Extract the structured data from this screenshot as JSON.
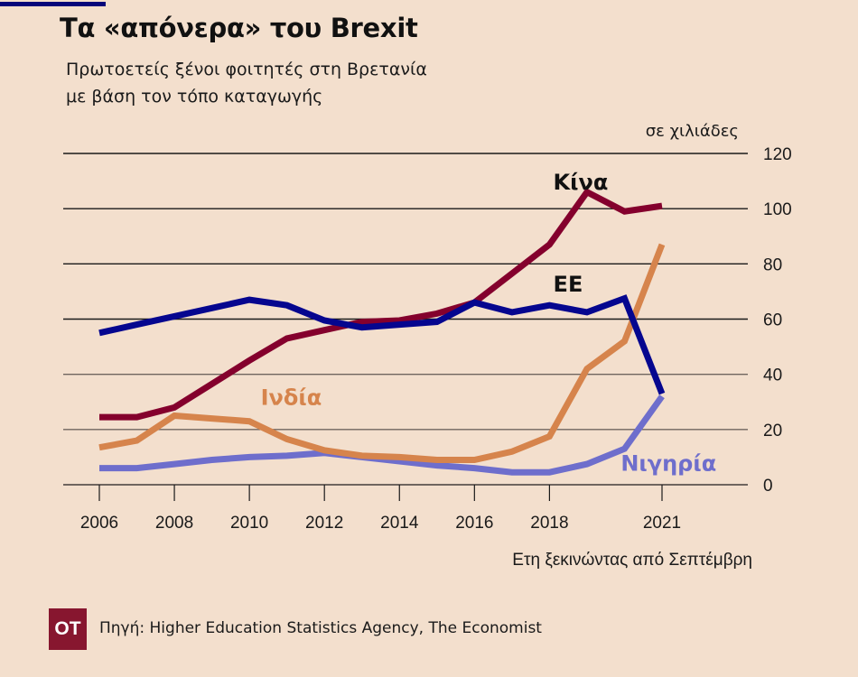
{
  "header": {
    "title": "Τα «απόνερα» του Brexit",
    "subtitle_line1": "Πρωτοετείς ξένοι φοιτητές στη Βρετανία",
    "subtitle_line2": "με βάση τον τόπο καταγωγής"
  },
  "footer": {
    "logo_text": "OT",
    "source": "Πηγή: Higher Education Statistics Agency, The Economist"
  },
  "colors": {
    "background": "#f3dfcd",
    "accent_bar": "#05067a",
    "logo": "#87162f"
  },
  "chart_data": {
    "type": "line",
    "title": "Τα «απόνερα» του Brexit",
    "subtitle": "Πρωτοετείς ξένοι φοιτητές στη Βρετανία με βάση τον τόπο καταγωγής",
    "unit_label": "σε χιλιάδες",
    "xlabel": "Ετη ξεκινώντας από Σεπτέμβρη",
    "ylabel": "",
    "x": [
      2006,
      2007,
      2008,
      2009,
      2010,
      2011,
      2012,
      2013,
      2014,
      2015,
      2016,
      2017,
      2018,
      2019,
      2020,
      2021
    ],
    "xlim": [
      2004.6,
      2023.3
    ],
    "ylim": [
      0,
      120
    ],
    "x_ticks": [
      2006,
      2008,
      2010,
      2012,
      2014,
      2016,
      2018,
      2021
    ],
    "x_tick_labels": [
      "2006",
      "2008",
      "2010",
      "2012",
      "2014",
      "2016",
      "2018",
      "2021"
    ],
    "y_ticks": [
      0,
      20,
      40,
      60,
      80,
      100,
      120
    ],
    "y_tick_labels": [
      "0",
      "20",
      "40",
      "60",
      "80",
      "100",
      "120"
    ],
    "y_axis_side": "right",
    "grid": true,
    "legend": "inline-labels",
    "series": [
      {
        "name": "Κίνα",
        "color": "#84002d",
        "label_color": "#111111",
        "label_at": [
          2018.1,
          107
        ],
        "values": [
          24.5,
          24.5,
          28,
          36.5,
          45,
          53,
          56,
          59,
          59.5,
          62,
          66,
          76.5,
          87,
          106,
          99,
          101
        ]
      },
      {
        "name": "ΕΕ",
        "color": "#05068f",
        "label_color": "#111111",
        "label_at": [
          2018.1,
          70
        ],
        "values": [
          55,
          58,
          61,
          64,
          67,
          65,
          59.5,
          57,
          58,
          59,
          66,
          62.5,
          65,
          62.5,
          67.5,
          33
        ]
      },
      {
        "name": "Ινδία",
        "color": "#d6844c",
        "label_color": "#d6844c",
        "label_at": [
          2010.3,
          29
        ],
        "values": [
          13.5,
          16,
          25,
          24,
          23,
          16.5,
          12.5,
          10.5,
          10,
          9,
          9,
          12,
          17.5,
          42,
          52,
          87
        ]
      },
      {
        "name": "Νιγηρία",
        "color": "#6e6ecc",
        "label_color": "#6e6ecc",
        "label_at": [
          2019.9,
          5
        ],
        "values": [
          6,
          6,
          7.5,
          9,
          10,
          10.5,
          11.5,
          10,
          8.5,
          7,
          6,
          4.5,
          4.5,
          7.5,
          13,
          32
        ]
      }
    ]
  }
}
